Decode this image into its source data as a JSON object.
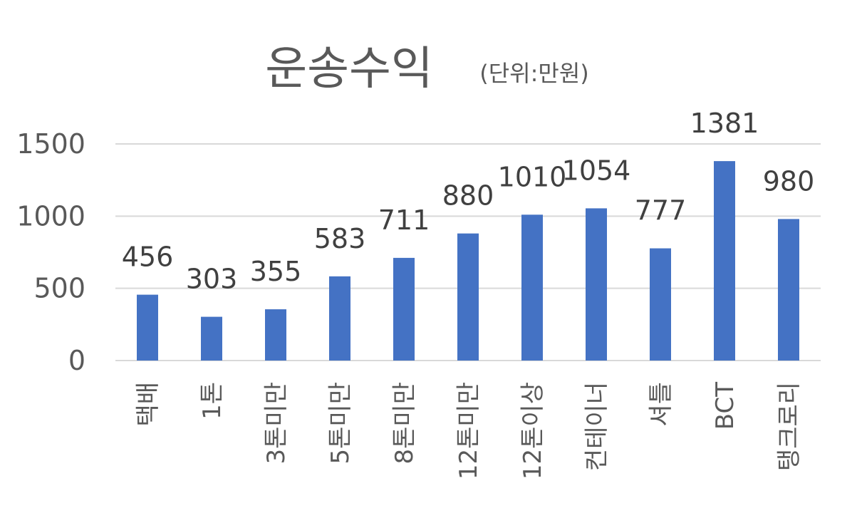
{
  "chart_data": {
    "type": "bar",
    "title": "운송수익",
    "subtitle": "(단위:만원)",
    "xlabel": "",
    "ylabel": "",
    "categories": [
      "택배",
      "1톤",
      "3톤미만",
      "5톤미만",
      "8톤미만",
      "12톤미만",
      "12톤이상",
      "컨테이너",
      "셔틀",
      "BCT",
      "탱크로리"
    ],
    "series": [
      {
        "values": [
          456,
          303,
          355,
          583,
          711,
          880,
          1010,
          1054,
          777,
          1381,
          980
        ]
      }
    ],
    "data_labels": [
      "456",
      "303",
      "355",
      "583",
      "711",
      "880",
      "1010",
      "1054",
      "777",
      "1381",
      "980"
    ],
    "y_ticks": [
      0,
      500,
      1000,
      1500
    ],
    "y_tick_labels": [
      "0",
      "500",
      "1000",
      "1500"
    ],
    "ylim": [
      0,
      1500
    ],
    "grid": true,
    "legend": "none",
    "colors": {
      "bar": "#4472C4",
      "grid": "#D9D9D9",
      "axis_text": "#595959",
      "title": "#595959",
      "data_label": "#404040"
    }
  }
}
